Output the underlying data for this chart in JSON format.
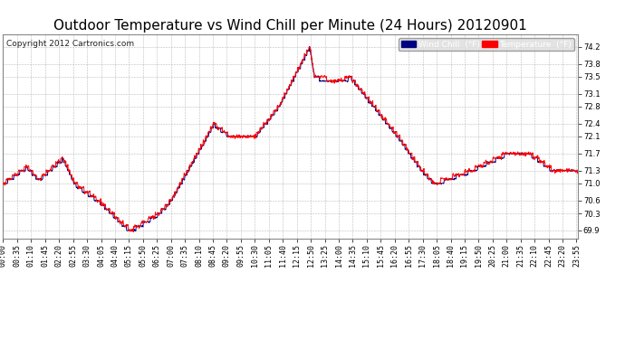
{
  "title": "Outdoor Temperature vs Wind Chill per Minute (24 Hours) 20120901",
  "copyright": "Copyright 2012 Cartronics.com",
  "legend_labels": [
    "Wind Chill  (°F)",
    "Temperature  (°F)"
  ],
  "wind_chill_color": "#000080",
  "temp_color": "#ff0000",
  "background_color": "#ffffff",
  "grid_color": "#aaaaaa",
  "ylim_min": 69.7,
  "ylim_max": 74.5,
  "yticks": [
    69.9,
    70.3,
    70.6,
    71.0,
    71.3,
    71.7,
    72.1,
    72.4,
    72.8,
    73.1,
    73.5,
    73.8,
    74.2
  ],
  "title_fontsize": 11,
  "tick_fontsize": 6.0,
  "label_interval_minutes": 35,
  "num_minutes": 1440
}
